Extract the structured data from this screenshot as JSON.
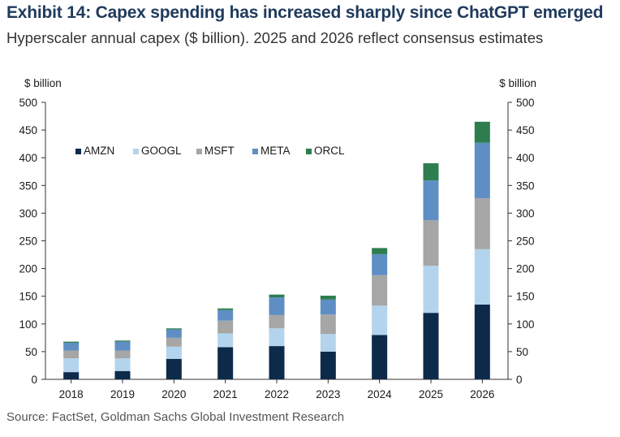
{
  "header": {
    "title": "Exhibit 14: Capex spending has increased sharply since ChatGPT emerged",
    "subtitle": "Hyperscaler annual capex ($ billion). 2025 and 2026 reflect consensus estimates"
  },
  "footer": {
    "source": "Source: FactSet, Goldman Sachs Global Investment Research"
  },
  "chart_data": {
    "type": "bar",
    "stacked": true,
    "title": "",
    "ylabel_left": "$ billion",
    "ylabel_right": "$ billion",
    "ylim": [
      0,
      500
    ],
    "yticks": [
      0,
      50,
      100,
      150,
      200,
      250,
      300,
      350,
      400,
      450,
      500
    ],
    "grid": false,
    "legend_position": "top-left",
    "categories": [
      "2018",
      "2019",
      "2020",
      "2021",
      "2022",
      "2023",
      "2024",
      "2025",
      "2026"
    ],
    "series": [
      {
        "name": "AMZN",
        "color": "#0d2a4a",
        "values": [
          13,
          15,
          37,
          58,
          60,
          50,
          80,
          120,
          135
        ]
      },
      {
        "name": "GOOGL",
        "color": "#b3d4ec",
        "values": [
          25,
          23,
          22,
          25,
          32,
          32,
          53,
          85,
          100
        ]
      },
      {
        "name": "MSFT",
        "color": "#a6a6a6",
        "values": [
          14,
          14,
          16,
          23,
          24,
          35,
          55,
          82,
          92
        ]
      },
      {
        "name": "META",
        "color": "#5f8ec4",
        "values": [
          14,
          16,
          15,
          19,
          32,
          27,
          38,
          72,
          100
        ]
      },
      {
        "name": "ORCL",
        "color": "#2e7d4f",
        "values": [
          2,
          2,
          2,
          3,
          5,
          7,
          11,
          31,
          38
        ]
      }
    ]
  }
}
